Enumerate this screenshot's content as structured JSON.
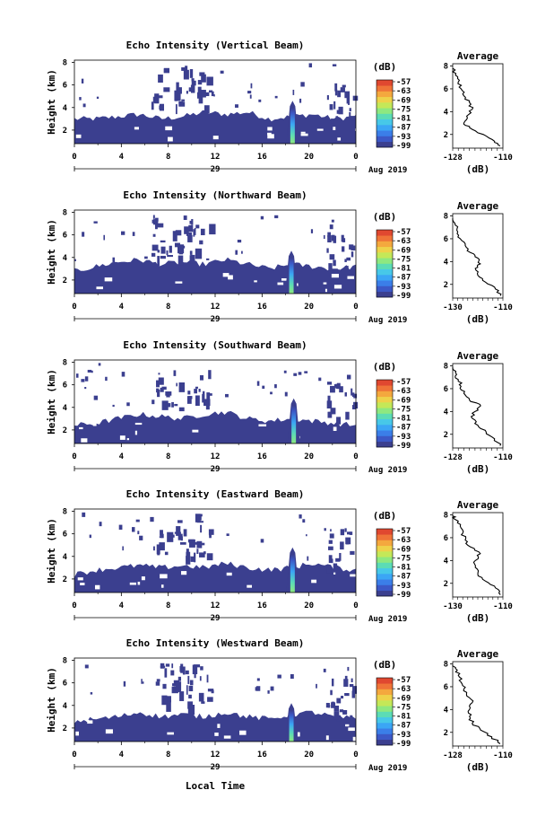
{
  "chart_data": {
    "type": "heatmap",
    "common": {
      "time_ticks": [
        "0",
        "4",
        "8",
        "12",
        "16",
        "20",
        "0"
      ],
      "time_values": [
        0,
        4,
        8,
        12,
        16,
        20,
        24
      ],
      "xlim": [
        0,
        24
      ],
      "date_day": "29",
      "date_month_year": "Aug 2019",
      "xlabel": "Local Time",
      "ylabel": "Height (km)",
      "y_ticks": [
        "2",
        "4",
        "6",
        "8"
      ],
      "ylim": [
        0.8,
        8.2
      ],
      "colorbar_unit": "(dB)",
      "colorbar_ticks": [
        "-57",
        "-63",
        "-69",
        "-75",
        "-81",
        "-87",
        "-93",
        "-99"
      ],
      "colorbar_colors": [
        "#3b3f8f",
        "#3c58c6",
        "#3b7ee8",
        "#3ba6f5",
        "#47c8e8",
        "#5cdcb5",
        "#8ee880",
        "#c4e858",
        "#eed24a",
        "#f4a83e",
        "#ef7438",
        "#e04830"
      ],
      "no_data_color": "#ffffff",
      "echo_color": "#3b3f8f",
      "avg_title": "Average",
      "avg_xlabel": "(dB)",
      "avg_y_ticks": [
        "2",
        "4",
        "6",
        "8"
      ],
      "avg_ylim": [
        0.8,
        8.2
      ]
    },
    "panels": [
      {
        "title": "Echo Intensity (Vertical Beam)",
        "avg_xlim": [
          -128,
          -110
        ],
        "avg_xticks": [
          "-128",
          "-110"
        ],
        "layer_top": [
          3.0,
          3.0,
          3.2,
          3.4,
          3.0,
          3.2,
          3.6,
          3.4,
          3.6,
          3.0,
          3.2,
          3.4,
          3.0,
          3.2
        ],
        "plume": {
          "center": 18.6,
          "top": 4.6,
          "peak_db": -70
        },
        "avg_profile": [
          [
            1.0,
            -111
          ],
          [
            1.4,
            -113
          ],
          [
            2.0,
            -117
          ],
          [
            2.6,
            -122
          ],
          [
            3.0,
            -124
          ],
          [
            3.6,
            -123
          ],
          [
            4.2,
            -121
          ],
          [
            4.8,
            -122
          ],
          [
            5.4,
            -124
          ],
          [
            6.0,
            -125
          ],
          [
            6.6,
            -126
          ],
          [
            7.2,
            -127
          ],
          [
            7.8,
            -128
          ]
        ]
      },
      {
        "title": "Echo Intensity (Northward Beam)",
        "avg_xlim": [
          -130,
          -110
        ],
        "avg_xticks": [
          "-130",
          "-110"
        ],
        "layer_top": [
          2.8,
          3.2,
          3.6,
          3.8,
          3.4,
          3.6,
          3.4,
          3.8,
          3.4,
          3.0,
          3.4,
          3.2,
          3.0,
          3.2
        ],
        "plume": {
          "center": 18.5,
          "top": 4.6,
          "peak_db": -68
        },
        "avg_profile": [
          [
            1.0,
            -111
          ],
          [
            1.6,
            -113
          ],
          [
            2.2,
            -117
          ],
          [
            2.8,
            -120
          ],
          [
            3.4,
            -121
          ],
          [
            3.8,
            -119
          ],
          [
            4.3,
            -120
          ],
          [
            4.8,
            -123
          ],
          [
            5.4,
            -125
          ],
          [
            6.0,
            -127
          ],
          [
            6.6,
            -128
          ],
          [
            7.2,
            -129
          ],
          [
            7.8,
            -130
          ]
        ]
      },
      {
        "title": "Echo Intensity (Southward Beam)",
        "avg_xlim": [
          -128,
          -110
        ],
        "avg_xticks": [
          "-128",
          "-110"
        ],
        "layer_top": [
          2.4,
          2.6,
          3.0,
          3.4,
          3.2,
          3.0,
          3.4,
          3.6,
          3.0,
          2.8,
          3.0,
          2.8,
          2.6,
          2.4
        ],
        "plume": {
          "center": 18.7,
          "top": 4.8,
          "peak_db": -72
        },
        "avg_profile": [
          [
            1.0,
            -111
          ],
          [
            1.6,
            -113
          ],
          [
            2.2,
            -116
          ],
          [
            2.8,
            -119
          ],
          [
            3.4,
            -121
          ],
          [
            4.0,
            -120
          ],
          [
            4.5,
            -118
          ],
          [
            5.0,
            -122
          ],
          [
            5.6,
            -124
          ],
          [
            6.2,
            -125
          ],
          [
            6.8,
            -126
          ],
          [
            7.4,
            -127
          ],
          [
            7.9,
            -128
          ]
        ]
      },
      {
        "title": "Echo Intensity (Eastward Beam)",
        "avg_xlim": [
          -130,
          -110
        ],
        "avg_xticks": [
          "-130",
          "-110"
        ],
        "layer_top": [
          2.4,
          2.8,
          3.0,
          3.2,
          3.0,
          3.2,
          3.0,
          3.4,
          3.0,
          2.8,
          3.0,
          3.4,
          3.0,
          2.8
        ],
        "plume": {
          "center": 18.6,
          "top": 4.8,
          "peak_db": -66
        },
        "avg_profile": [
          [
            1.0,
            -111
          ],
          [
            1.6,
            -113
          ],
          [
            2.2,
            -117
          ],
          [
            2.8,
            -120
          ],
          [
            3.4,
            -121
          ],
          [
            4.0,
            -121
          ],
          [
            4.6,
            -119
          ],
          [
            5.2,
            -123
          ],
          [
            5.8,
            -125
          ],
          [
            6.4,
            -126
          ],
          [
            7.0,
            -127
          ],
          [
            7.6,
            -129
          ],
          [
            7.9,
            -130
          ]
        ]
      },
      {
        "title": "Echo Intensity (Westward Beam)",
        "avg_xlim": [
          -128,
          -110
        ],
        "avg_xticks": [
          "-128",
          "-110"
        ],
        "layer_top": [
          2.6,
          2.8,
          3.0,
          3.4,
          3.0,
          3.2,
          3.0,
          3.4,
          3.0,
          2.8,
          3.2,
          3.4,
          3.0,
          2.8
        ],
        "plume": {
          "center": 18.5,
          "top": 4.2,
          "peak_db": -75
        },
        "avg_profile": [
          [
            1.0,
            -111
          ],
          [
            1.6,
            -114
          ],
          [
            2.2,
            -118
          ],
          [
            2.8,
            -121
          ],
          [
            3.4,
            -122
          ],
          [
            4.0,
            -122
          ],
          [
            4.6,
            -121
          ],
          [
            5.2,
            -123
          ],
          [
            5.8,
            -124
          ],
          [
            6.4,
            -125
          ],
          [
            7.0,
            -126
          ],
          [
            7.6,
            -127
          ],
          [
            7.9,
            -128
          ]
        ]
      }
    ]
  }
}
